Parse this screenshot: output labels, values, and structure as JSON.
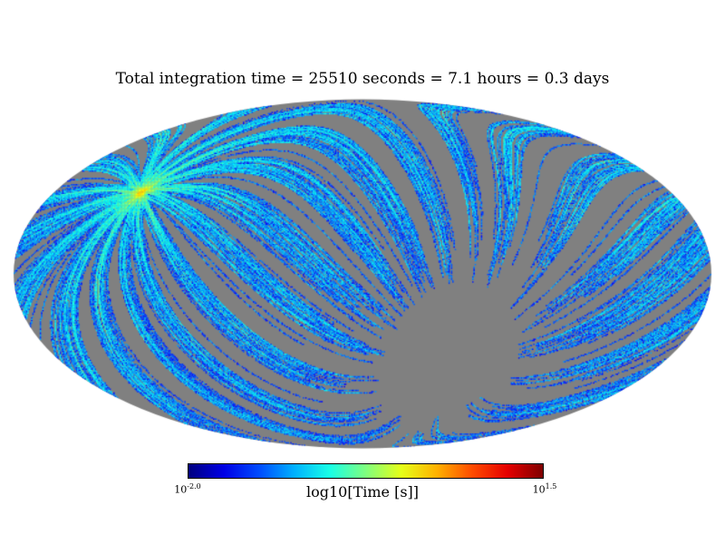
{
  "title": "Total integration time = 25510 seconds = 7.1 hours = 0.3 days",
  "colorbar": {
    "label": "log10[Time [s]]",
    "min_base": "10",
    "min_exp": "-2.0",
    "max_base": "10",
    "max_exp": "1.5",
    "colormap": "jet"
  },
  "chart_data": {
    "type": "heatmap",
    "projection": "mollweide",
    "title": "Total integration time = 25510 seconds = 7.1 hours = 0.3 days",
    "colorbar_label": "log10[Time [s]]",
    "scale": "log10",
    "colormap": "jet",
    "vmin_log10": -2.0,
    "vmax_log10": 1.5,
    "vmin_seconds": 0.01,
    "vmax_seconds": 31.6,
    "total_integration_seconds": 25510,
    "total_integration_hours": 7.1,
    "total_integration_days": 0.3,
    "unobserved_color": "#808080",
    "background_color": "#ffffff",
    "legend_position": "bottom",
    "grid": false
  }
}
